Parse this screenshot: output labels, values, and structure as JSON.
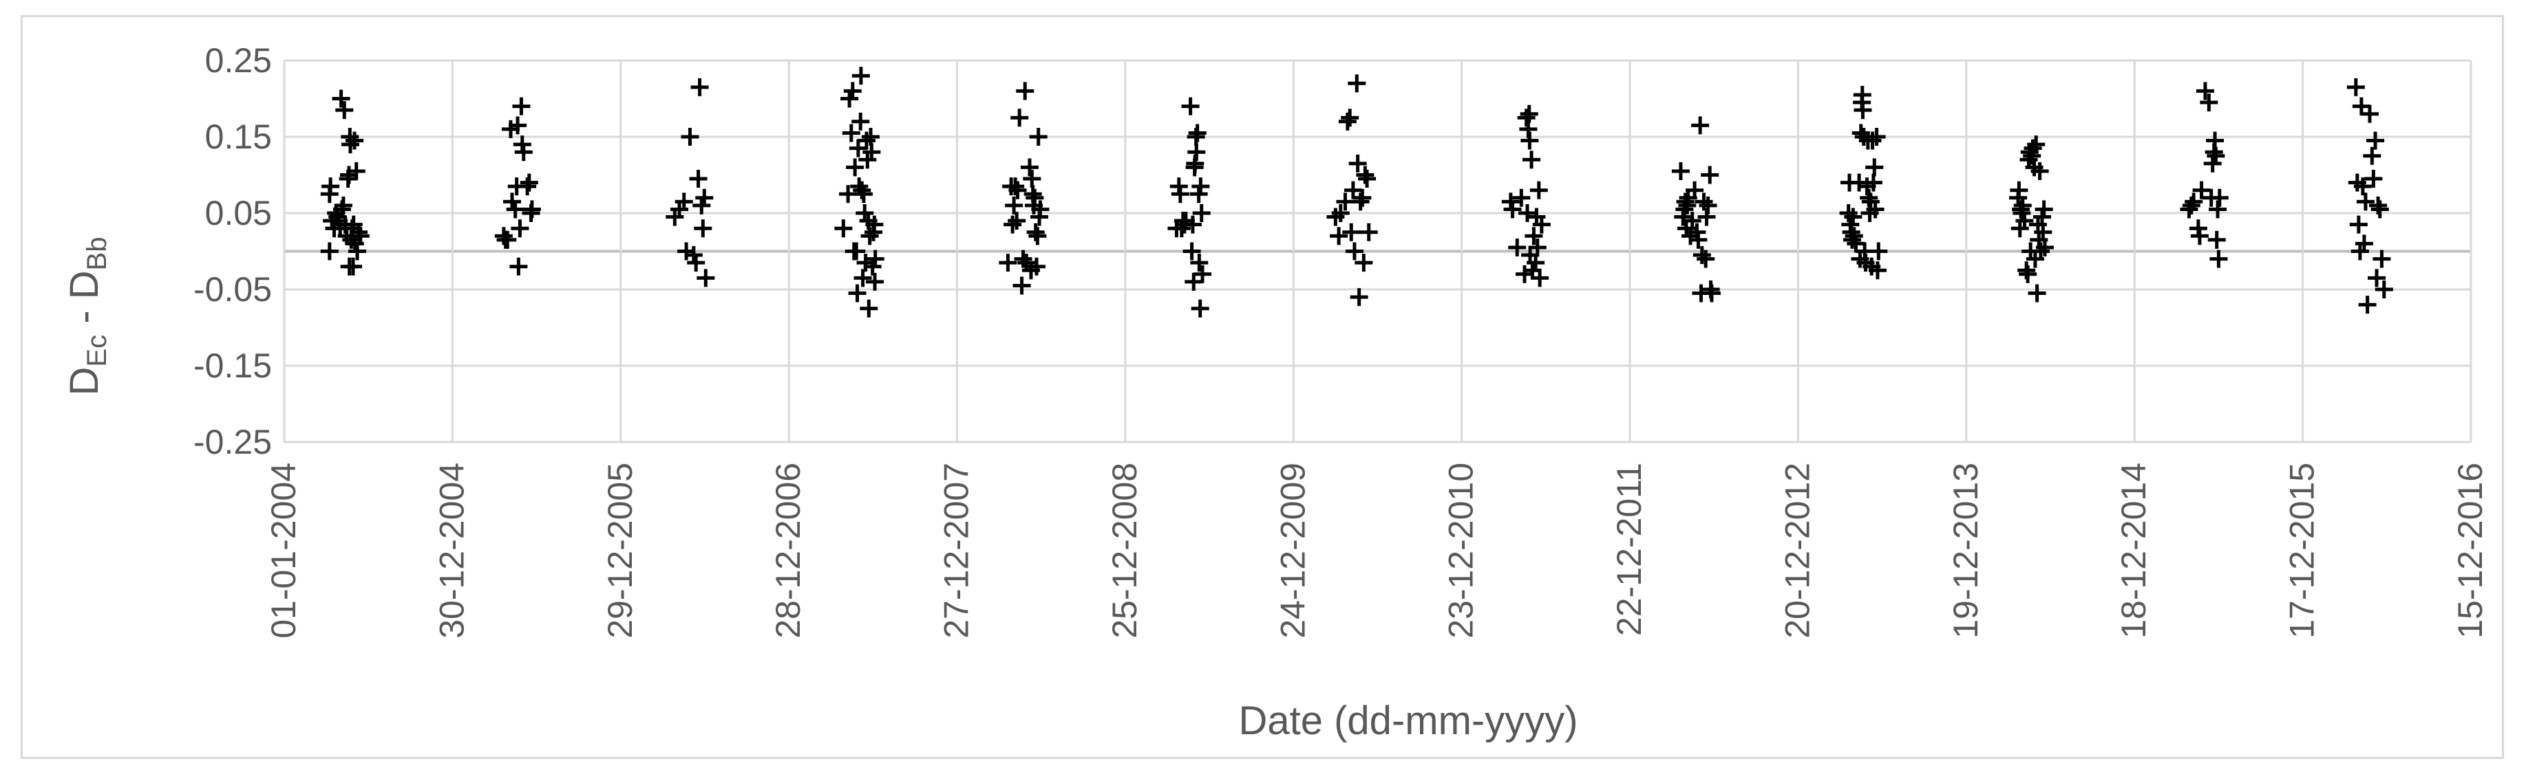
{
  "chart_data": {
    "type": "scatter",
    "title": "",
    "xlabel": "Date (dd-mm-yyyy)",
    "ylabel": "D",
    "ylabel_sub1": "Ec",
    "ylabel_mid": " - D",
    "ylabel_sub2": "Bb",
    "x_tick_labels": [
      "01-01-2004",
      "30-12-2004",
      "29-12-2005",
      "28-12-2006",
      "27-12-2007",
      "25-12-2008",
      "24-12-2009",
      "23-12-2010",
      "22-12-2011",
      "20-12-2012",
      "19-12-2013",
      "18-12-2014",
      "17-12-2015",
      "15-12-2016"
    ],
    "y_tick_labels": [
      "0.25",
      "0.15",
      "0.05",
      "-0.05",
      "-0.15",
      "-0.25"
    ],
    "xlim": [
      "2004-01-01",
      "2016-12-15"
    ],
    "ylim": [
      -0.25,
      0.25
    ],
    "grid": true,
    "legend": "none",
    "marker": "plus",
    "marker_color": "#000000",
    "points": [
      [
        "2004-04-08",
        0.0
      ],
      [
        "2004-04-08",
        0.075
      ],
      [
        "2004-04-10",
        0.085
      ],
      [
        "2004-04-13",
        0.04
      ],
      [
        "2004-04-18",
        0.03
      ],
      [
        "2004-04-22",
        0.05
      ],
      [
        "2004-04-25",
        0.045
      ],
      [
        "2004-04-28",
        0.04
      ],
      [
        "2004-05-01",
        0.03
      ],
      [
        "2004-05-03",
        0.2
      ],
      [
        "2004-05-05",
        0.055
      ],
      [
        "2004-05-08",
        0.06
      ],
      [
        "2004-05-10",
        0.185
      ],
      [
        "2004-05-12",
        0.035
      ],
      [
        "2004-05-15",
        0.02
      ],
      [
        "2004-05-18",
        0.095
      ],
      [
        "2004-05-20",
        0.1
      ],
      [
        "2004-05-21",
        -0.02
      ],
      [
        "2004-05-22",
        0.15
      ],
      [
        "2004-05-23",
        0.14
      ],
      [
        "2004-05-25",
        0.015
      ],
      [
        "2004-05-27",
        0.03
      ],
      [
        "2004-05-29",
        -0.02
      ],
      [
        "2004-05-30",
        0.035
      ],
      [
        "2004-06-01",
        0.145
      ],
      [
        "2004-06-02",
        0.01
      ],
      [
        "2004-06-05",
        0.105
      ],
      [
        "2004-06-07",
        0.0
      ],
      [
        "2004-06-10",
        0.025
      ],
      [
        "2004-06-14",
        0.02
      ],
      [
        "2005-04-20",
        0.02
      ],
      [
        "2005-04-24",
        0.015
      ],
      [
        "2005-04-28",
        0.015
      ],
      [
        "2005-05-05",
        0.16
      ],
      [
        "2005-05-08",
        0.065
      ],
      [
        "2005-05-15",
        0.055
      ],
      [
        "2005-05-18",
        0.085
      ],
      [
        "2005-05-20",
        0.165
      ],
      [
        "2005-05-22",
        -0.02
      ],
      [
        "2005-05-25",
        0.03
      ],
      [
        "2005-05-28",
        0.19
      ],
      [
        "2005-05-30",
        0.14
      ],
      [
        "2005-06-02",
        0.13
      ],
      [
        "2005-06-10",
        0.085
      ],
      [
        "2005-06-14",
        0.09
      ],
      [
        "2005-06-18",
        0.05
      ],
      [
        "2005-06-20",
        0.055
      ],
      [
        "2006-04-25",
        0.045
      ],
      [
        "2006-05-05",
        0.055
      ],
      [
        "2006-05-15",
        0.065
      ],
      [
        "2006-05-20",
        0.0
      ],
      [
        "2006-05-28",
        0.15
      ],
      [
        "2006-06-05",
        -0.005
      ],
      [
        "2006-06-10",
        -0.015
      ],
      [
        "2006-06-15",
        0.095
      ],
      [
        "2006-06-18",
        0.215
      ],
      [
        "2006-06-22",
        0.06
      ],
      [
        "2006-06-25",
        0.03
      ],
      [
        "2006-06-28",
        0.07
      ],
      [
        "2006-07-01",
        -0.035
      ],
      [
        "2007-04-25",
        0.03
      ],
      [
        "2007-05-05",
        0.075
      ],
      [
        "2007-05-08",
        0.2
      ],
      [
        "2007-05-12",
        0.155
      ],
      [
        "2007-05-15",
        0.21
      ],
      [
        "2007-05-18",
        0.0
      ],
      [
        "2007-05-20",
        0.11
      ],
      [
        "2007-05-23",
        0.0
      ],
      [
        "2007-05-25",
        -0.055
      ],
      [
        "2007-05-27",
        0.135
      ],
      [
        "2007-05-29",
        0.085
      ],
      [
        "2007-06-01",
        0.17
      ],
      [
        "2007-06-02",
        0.23
      ],
      [
        "2007-06-04",
        0.08
      ],
      [
        "2007-06-06",
        -0.035
      ],
      [
        "2007-06-08",
        0.075
      ],
      [
        "2007-06-10",
        0.05
      ],
      [
        "2007-06-12",
        -0.015
      ],
      [
        "2007-06-14",
        0.145
      ],
      [
        "2007-06-16",
        0.12
      ],
      [
        "2007-06-18",
        0.04
      ],
      [
        "2007-06-19",
        -0.075
      ],
      [
        "2007-06-21",
        0.02
      ],
      [
        "2007-06-23",
        0.15
      ],
      [
        "2007-06-25",
        0.13
      ],
      [
        "2007-06-27",
        -0.02
      ],
      [
        "2007-06-29",
        0.025
      ],
      [
        "2007-07-01",
        0.035
      ],
      [
        "2007-07-02",
        -0.04
      ],
      [
        "2007-07-03",
        -0.01
      ],
      [
        "2008-04-15",
        -0.015
      ],
      [
        "2008-04-22",
        0.085
      ],
      [
        "2008-04-25",
        0.035
      ],
      [
        "2008-04-28",
        0.06
      ],
      [
        "2008-05-01",
        0.085
      ],
      [
        "2008-05-04",
        0.04
      ],
      [
        "2008-05-06",
        0.08
      ],
      [
        "2008-05-10",
        0.175
      ],
      [
        "2008-05-15",
        -0.045
      ],
      [
        "2008-05-18",
        -0.01
      ],
      [
        "2008-05-22",
        0.21
      ],
      [
        "2008-05-25",
        -0.015
      ],
      [
        "2008-06-01",
        0.11
      ],
      [
        "2008-06-04",
        -0.025
      ],
      [
        "2008-06-06",
        0.095
      ],
      [
        "2008-06-08",
        0.075
      ],
      [
        "2008-06-10",
        0.06
      ],
      [
        "2008-06-12",
        0.07
      ],
      [
        "2008-06-14",
        0.025
      ],
      [
        "2008-06-16",
        -0.02
      ],
      [
        "2008-06-18",
        0.02
      ],
      [
        "2008-06-20",
        0.15
      ],
      [
        "2008-06-22",
        0.045
      ],
      [
        "2008-06-24",
        0.055
      ],
      [
        "2009-04-15",
        0.03
      ],
      [
        "2009-04-20",
        0.085
      ],
      [
        "2009-04-23",
        0.075
      ],
      [
        "2009-04-26",
        0.03
      ],
      [
        "2009-04-29",
        0.04
      ],
      [
        "2009-05-02",
        0.035
      ],
      [
        "2009-05-05",
        0.04
      ],
      [
        "2009-05-15",
        0.19
      ],
      [
        "2009-05-18",
        0.0
      ],
      [
        "2009-05-20",
        0.035
      ],
      [
        "2009-05-22",
        -0.04
      ],
      [
        "2009-05-24",
        0.11
      ],
      [
        "2009-05-25",
        0.115
      ],
      [
        "2009-05-27",
        0.15
      ],
      [
        "2009-05-28",
        0.13
      ],
      [
        "2009-05-30",
        0.155
      ],
      [
        "2009-06-02",
        0.075
      ],
      [
        "2009-06-03",
        -0.015
      ],
      [
        "2009-06-05",
        -0.075
      ],
      [
        "2009-06-06",
        0.085
      ],
      [
        "2009-06-08",
        0.05
      ],
      [
        "2009-06-10",
        -0.03
      ],
      [
        "2010-03-25",
        0.045
      ],
      [
        "2010-04-01",
        0.02
      ],
      [
        "2010-04-05",
        0.05
      ],
      [
        "2010-04-15",
        0.065
      ],
      [
        "2010-04-20",
        0.17
      ],
      [
        "2010-04-25",
        0.175
      ],
      [
        "2010-04-28",
        0.025
      ],
      [
        "2010-05-02",
        0.08
      ],
      [
        "2010-05-05",
        0.0
      ],
      [
        "2010-05-10",
        0.22
      ],
      [
        "2010-05-12",
        0.115
      ],
      [
        "2010-05-15",
        -0.06
      ],
      [
        "2010-05-18",
        0.065
      ],
      [
        "2010-05-22",
        0.07
      ],
      [
        "2010-05-25",
        -0.015
      ],
      [
        "2010-05-28",
        0.1
      ],
      [
        "2010-06-01",
        0.095
      ],
      [
        "2010-06-05",
        0.025
      ],
      [
        "2011-04-08",
        0.065
      ],
      [
        "2011-04-12",
        0.055
      ],
      [
        "2011-04-22",
        0.005
      ],
      [
        "2011-05-01",
        0.07
      ],
      [
        "2011-05-08",
        -0.03
      ],
      [
        "2011-05-12",
        0.175
      ],
      [
        "2011-05-14",
        0.05
      ],
      [
        "2011-05-16",
        0.16
      ],
      [
        "2011-05-18",
        0.18
      ],
      [
        "2011-05-19",
        0.145
      ],
      [
        "2011-05-20",
        -0.005
      ],
      [
        "2011-05-23",
        0.12
      ],
      [
        "2011-05-25",
        -0.025
      ],
      [
        "2011-05-28",
        0.02
      ],
      [
        "2011-06-01",
        -0.015
      ],
      [
        "2011-06-03",
        0.045
      ],
      [
        "2011-06-05",
        0.005
      ],
      [
        "2011-06-08",
        0.08
      ],
      [
        "2011-06-10",
        -0.035
      ],
      [
        "2011-06-14",
        0.035
      ],
      [
        "2012-04-10",
        0.105
      ],
      [
        "2012-04-15",
        0.045
      ],
      [
        "2012-04-18",
        0.055
      ],
      [
        "2012-04-20",
        0.065
      ],
      [
        "2012-04-22",
        0.03
      ],
      [
        "2012-04-24",
        0.06
      ],
      [
        "2012-04-26",
        0.07
      ],
      [
        "2012-05-01",
        0.02
      ],
      [
        "2012-05-05",
        0.04
      ],
      [
        "2012-05-10",
        0.08
      ],
      [
        "2012-05-15",
        0.025
      ],
      [
        "2012-05-18",
        0.015
      ],
      [
        "2012-05-22",
        0.165
      ],
      [
        "2012-05-24",
        -0.055
      ],
      [
        "2012-05-26",
        -0.005
      ],
      [
        "2012-05-30",
        0.065
      ],
      [
        "2012-06-03",
        -0.01
      ],
      [
        "2012-06-05",
        0.045
      ],
      [
        "2012-06-08",
        0.06
      ],
      [
        "2012-06-12",
        0.1
      ],
      [
        "2012-06-14",
        -0.05
      ],
      [
        "2012-06-16",
        -0.055
      ],
      [
        "2013-04-08",
        0.05
      ],
      [
        "2013-04-10",
        0.09
      ],
      [
        "2013-04-12",
        0.035
      ],
      [
        "2013-04-14",
        0.025
      ],
      [
        "2013-04-16",
        0.015
      ],
      [
        "2013-04-18",
        0.045
      ],
      [
        "2013-04-20",
        0.02
      ],
      [
        "2013-04-24",
        0.01
      ],
      [
        "2013-05-01",
        0.09
      ],
      [
        "2013-05-03",
        -0.01
      ],
      [
        "2013-05-05",
        0.155
      ],
      [
        "2013-05-07",
        0.195
      ],
      [
        "2013-05-08",
        0.205
      ],
      [
        "2013-05-09",
        0.185
      ],
      [
        "2013-05-11",
        0.15
      ],
      [
        "2013-05-13",
        0.0
      ],
      [
        "2013-05-15",
        -0.015
      ],
      [
        "2013-05-18",
        0.085
      ],
      [
        "2013-05-20",
        0.145
      ],
      [
        "2013-05-22",
        0.07
      ],
      [
        "2013-05-24",
        0.05
      ],
      [
        "2013-05-26",
        0.065
      ],
      [
        "2013-05-28",
        -0.02
      ],
      [
        "2013-05-30",
        0.145
      ],
      [
        "2013-06-01",
        0.09
      ],
      [
        "2013-06-03",
        0.11
      ],
      [
        "2013-06-05",
        0.055
      ],
      [
        "2013-06-08",
        0.15
      ],
      [
        "2013-06-10",
        -0.025
      ],
      [
        "2013-06-12",
        0.0
      ],
      [
        "2014-04-10",
        0.07
      ],
      [
        "2014-04-12",
        0.08
      ],
      [
        "2014-04-14",
        0.03
      ],
      [
        "2014-04-16",
        0.055
      ],
      [
        "2014-04-18",
        0.05
      ],
      [
        "2014-04-20",
        0.06
      ],
      [
        "2014-04-24",
        0.04
      ],
      [
        "2014-04-28",
        -0.025
      ],
      [
        "2014-05-01",
        -0.03
      ],
      [
        "2014-05-03",
        0.12
      ],
      [
        "2014-05-05",
        0.13
      ],
      [
        "2014-05-07",
        0.0
      ],
      [
        "2014-05-10",
        0.125
      ],
      [
        "2014-05-12",
        0.135
      ],
      [
        "2014-05-15",
        0.11
      ],
      [
        "2014-05-17",
        -0.01
      ],
      [
        "2014-05-19",
        0.14
      ],
      [
        "2014-05-21",
        -0.055
      ],
      [
        "2014-05-23",
        0.035
      ],
      [
        "2014-05-25",
        0.015
      ],
      [
        "2014-05-27",
        0.105
      ],
      [
        "2014-05-29",
        0.0
      ],
      [
        "2014-06-01",
        0.045
      ],
      [
        "2014-06-03",
        0.025
      ],
      [
        "2014-06-05",
        0.055
      ],
      [
        "2014-06-07",
        0.005
      ],
      [
        "2015-04-15",
        0.055
      ],
      [
        "2015-04-20",
        0.06
      ],
      [
        "2015-04-25",
        0.065
      ],
      [
        "2015-05-05",
        0.03
      ],
      [
        "2015-05-08",
        0.02
      ],
      [
        "2015-05-12",
        0.08
      ],
      [
        "2015-05-20",
        0.21
      ],
      [
        "2015-05-28",
        0.195
      ],
      [
        "2015-06-02",
        0.07
      ],
      [
        "2015-06-05",
        0.115
      ],
      [
        "2015-06-08",
        0.13
      ],
      [
        "2015-06-10",
        0.145
      ],
      [
        "2015-06-12",
        0.125
      ],
      [
        "2015-06-14",
        0.015
      ],
      [
        "2015-06-16",
        0.055
      ],
      [
        "2015-06-18",
        -0.01
      ],
      [
        "2015-06-20",
        0.07
      ],
      [
        "2016-04-10",
        0.215
      ],
      [
        "2016-04-13",
        0.09
      ],
      [
        "2016-04-16",
        0.035
      ],
      [
        "2016-04-19",
        0.0
      ],
      [
        "2016-04-22",
        0.19
      ],
      [
        "2016-04-25",
        0.085
      ],
      [
        "2016-04-28",
        0.01
      ],
      [
        "2016-05-01",
        0.065
      ],
      [
        "2016-05-05",
        -0.07
      ],
      [
        "2016-05-10",
        0.18
      ],
      [
        "2016-05-15",
        0.125
      ],
      [
        "2016-05-18",
        0.095
      ],
      [
        "2016-05-22",
        0.145
      ],
      [
        "2016-05-25",
        -0.035
      ],
      [
        "2016-05-28",
        0.06
      ],
      [
        "2016-06-01",
        0.055
      ],
      [
        "2016-06-05",
        -0.01
      ],
      [
        "2016-06-10",
        -0.05
      ]
    ]
  }
}
